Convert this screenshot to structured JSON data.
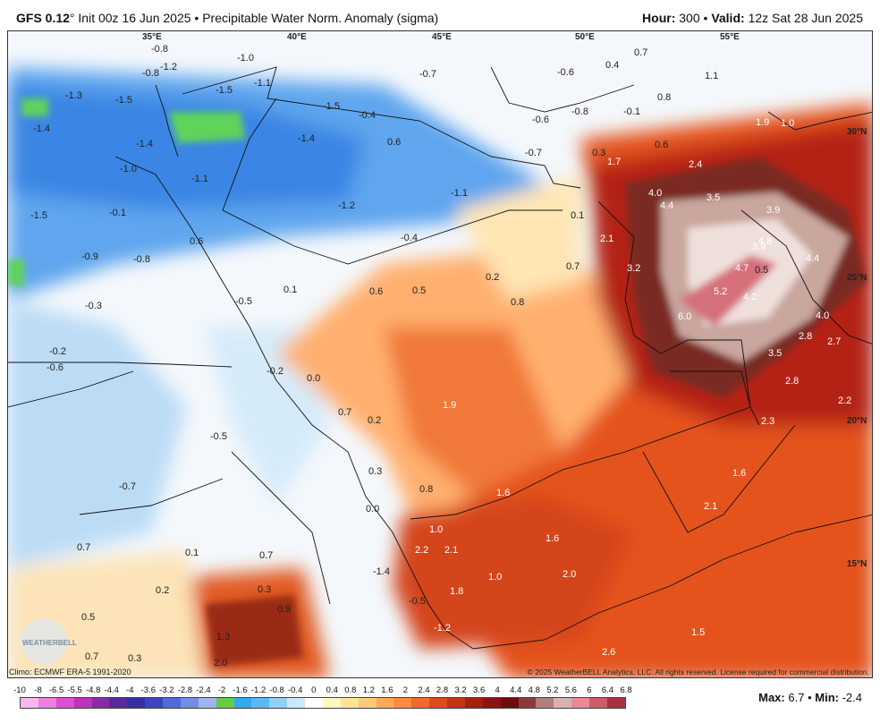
{
  "header": {
    "model": "GFS 0.12",
    "degree": "°",
    "init": "Init 00z 16 Jun 2025",
    "bullet": "•",
    "product": "Precipitable Water Norm. Anomaly (sigma)",
    "hour_label": "Hour:",
    "hour_value": "300",
    "valid_label": "Valid:",
    "valid_value": "12z Sat 28 Jun 2025"
  },
  "map": {
    "lon_labels": [
      "35°E",
      "40°E",
      "45°E",
      "50°E",
      "55°E"
    ],
    "lat_labels": [
      "30°N",
      "25°N",
      "20°N",
      "15°N"
    ],
    "values": [
      {
        "t": "-0.8"
      },
      {
        "t": "-1.0"
      },
      {
        "t": "-1.2"
      },
      {
        "t": "0.4"
      },
      {
        "t": "0.7"
      },
      {
        "t": "-0.8"
      },
      {
        "t": "-1.1"
      },
      {
        "t": "-1.5"
      },
      {
        "t": "-0.7"
      },
      {
        "t": "-0.6"
      },
      {
        "t": "1.1"
      },
      {
        "t": "-1.3"
      },
      {
        "t": "-1.5"
      },
      {
        "t": "-0.4"
      },
      {
        "t": "-0.6"
      },
      {
        "t": "-0.8"
      },
      {
        "t": "-0.1"
      },
      {
        "t": "0.8"
      },
      {
        "t": "-1.4"
      },
      {
        "t": "-1.4"
      },
      {
        "t": "-1.5"
      },
      {
        "t": "1.9"
      },
      {
        "t": "1.0"
      },
      {
        "t": "-1.4"
      },
      {
        "t": "0.6"
      },
      {
        "t": "-0.7"
      },
      {
        "t": "0.3"
      },
      {
        "t": "0.6"
      },
      {
        "t": "-1.0"
      },
      {
        "t": "-1.1"
      },
      {
        "t": "1.7"
      },
      {
        "t": "2.4"
      },
      {
        "t": "-1.1"
      },
      {
        "t": "4.0"
      },
      {
        "t": "3.5"
      },
      {
        "t": "-1.5"
      },
      {
        "t": "-0.1"
      },
      {
        "t": "-1.2"
      },
      {
        "t": "0.1"
      },
      {
        "t": "4.4"
      },
      {
        "t": "3.9"
      },
      {
        "t": "-0.4"
      },
      {
        "t": "2.1"
      },
      {
        "t": "3.9"
      },
      {
        "t": "4.8"
      },
      {
        "t": "0.6"
      },
      {
        "t": "-0.9"
      },
      {
        "t": "-0.8"
      },
      {
        "t": "0.7"
      },
      {
        "t": "3.2"
      },
      {
        "t": "4.7"
      },
      {
        "t": "4.4"
      },
      {
        "t": "0.2"
      },
      {
        "t": "0.1"
      },
      {
        "t": "0.6"
      },
      {
        "t": "0.5"
      },
      {
        "t": "5.2"
      },
      {
        "t": "4.2"
      },
      {
        "t": "-0.5"
      },
      {
        "t": "0.5"
      },
      {
        "t": "0.8"
      },
      {
        "t": "6.0"
      },
      {
        "t": "4.0"
      },
      {
        "t": "-0.3"
      },
      {
        "t": "2.8"
      },
      {
        "t": "2.7"
      },
      {
        "t": "-0.2"
      },
      {
        "t": "-0.6"
      },
      {
        "t": "3.5"
      },
      {
        "t": "-0.2"
      },
      {
        "t": "0.0"
      },
      {
        "t": "2.8"
      },
      {
        "t": "1.9"
      },
      {
        "t": "2.2"
      },
      {
        "t": "0.7"
      },
      {
        "t": "0.2"
      },
      {
        "t": "2.3"
      },
      {
        "t": "-0.5"
      },
      {
        "t": "0.3"
      },
      {
        "t": "1.6"
      },
      {
        "t": "-0.7"
      },
      {
        "t": "0.8"
      },
      {
        "t": "1.6"
      },
      {
        "t": "0.0"
      },
      {
        "t": "2.1"
      },
      {
        "t": "1.0"
      },
      {
        "t": "0.7"
      },
      {
        "t": "1.6"
      },
      {
        "t": "2.2"
      },
      {
        "t": "2.1"
      },
      {
        "t": "0.1"
      },
      {
        "t": "0.7"
      },
      {
        "t": "-1.4"
      },
      {
        "t": "1.0"
      },
      {
        "t": "2.0"
      },
      {
        "t": "0.2"
      },
      {
        "t": "0.3"
      },
      {
        "t": "1.8"
      },
      {
        "t": "-0.5"
      },
      {
        "t": "0.9"
      },
      {
        "t": "0.5"
      },
      {
        "t": "-1.2"
      },
      {
        "t": "1.5"
      },
      {
        "t": "1.3"
      },
      {
        "t": "2.6"
      },
      {
        "t": "0.7"
      },
      {
        "t": "0.3"
      },
      {
        "t": "2.0"
      }
    ]
  },
  "footer": {
    "climo": "Climo: ECMWF ERA-5 1991-2020",
    "copyright": "© 2025 WeatherBELL Analytics, LLC. All rights reserved. License required for commercial distribution.",
    "scale_ticks": [
      "-10",
      "-8",
      "-6.5",
      "-5.5",
      "-4.8",
      "-4.4",
      "-4",
      "-3.6",
      "-3.2",
      "-2.8",
      "-2.4",
      "-2",
      "-1.6",
      "-1.2",
      "-0.8",
      "-0.4",
      "0",
      "0.4",
      "0.8",
      "1.2",
      "1.6",
      "2",
      "2.4",
      "2.8",
      "3.2",
      "3.6",
      "4",
      "4.4",
      "4.8",
      "5.2",
      "5.6",
      "6",
      "6.4",
      "6.8"
    ],
    "scale_colors": [
      "#f7b6ee",
      "#ee7fe0",
      "#dd4fcf",
      "#b934b8",
      "#8a2aa5",
      "#5a2a9c",
      "#3a2fa0",
      "#3c45c0",
      "#4f6bd8",
      "#6f8ee4",
      "#9fb3ec",
      "#66cc44",
      "#33a8f0",
      "#5cb8f4",
      "#8fd0f8",
      "#c8e8fb",
      "#ffffff",
      "#fff6c0",
      "#ffe29a",
      "#ffc87a",
      "#ffa85a",
      "#ff8a40",
      "#f2682e",
      "#dd4a1e",
      "#c33314",
      "#a5210e",
      "#8a1410",
      "#6e0d0d",
      "#8a3a3a",
      "#b57d7d",
      "#d9b0b0",
      "#e88a96",
      "#cf5a6a",
      "#a83040"
    ],
    "max_label": "Max:",
    "max_value": "6.7",
    "min_label": "Min:",
    "min_value": "-2.4",
    "logo_text": "WEATHERBELL"
  }
}
